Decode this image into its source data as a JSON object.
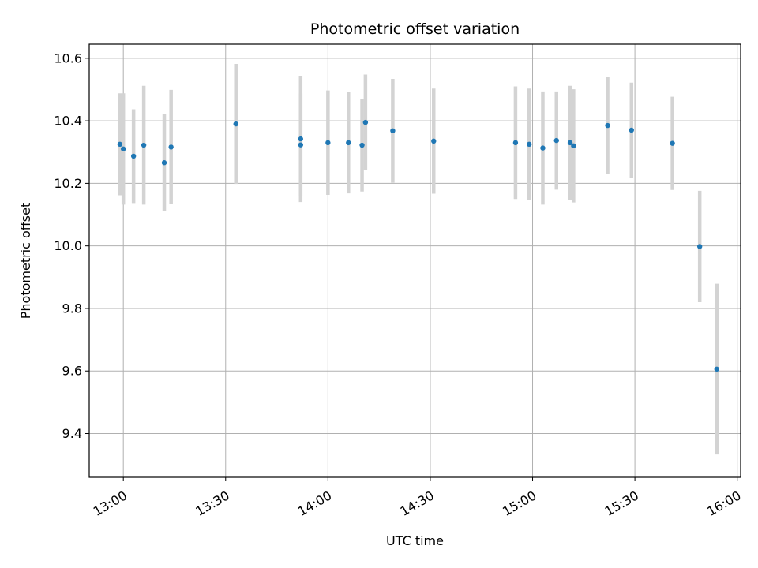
{
  "chart_data": {
    "type": "scatter",
    "title": "Photometric offset variation",
    "xlabel": "UTC time",
    "ylabel": "Photometric offset",
    "x_ticks": [
      "13:00",
      "13:30",
      "14:00",
      "14:30",
      "15:00",
      "15:30",
      "16:00"
    ],
    "y_ticks": [
      "9.4",
      "9.6",
      "9.8",
      "10.0",
      "10.2",
      "10.4",
      "10.6"
    ],
    "xlim": [
      "12:50",
      "15:61"
    ],
    "ylim": [
      9.26,
      10.645
    ],
    "grid": true,
    "series": [
      {
        "points": [
          {
            "t": "12:59",
            "y": 10.325,
            "err": 0.163
          },
          {
            "t": "13:00",
            "y": 10.31,
            "err": 0.178
          },
          {
            "t": "13:03",
            "y": 10.287,
            "err": 0.15
          },
          {
            "t": "13:06",
            "y": 10.322,
            "err": 0.19
          },
          {
            "t": "13:12",
            "y": 10.266,
            "err": 0.155
          },
          {
            "t": "13:14",
            "y": 10.316,
            "err": 0.183
          },
          {
            "t": "13:33",
            "y": 10.39,
            "err": 0.192
          },
          {
            "t": "13:52",
            "y": 10.342,
            "err": 0.202
          },
          {
            "t": "13:52",
            "y": 10.323,
            "err": 0.165
          },
          {
            "t": "14:00",
            "y": 10.33,
            "err": 0.167
          },
          {
            "t": "14:06",
            "y": 10.33,
            "err": 0.162
          },
          {
            "t": "14:10",
            "y": 10.322,
            "err": 0.148
          },
          {
            "t": "14:11",
            "y": 10.395,
            "err": 0.153
          },
          {
            "t": "14:19",
            "y": 10.368,
            "err": 0.166
          },
          {
            "t": "14:31",
            "y": 10.335,
            "err": 0.168
          },
          {
            "t": "14:55",
            "y": 10.33,
            "err": 0.18
          },
          {
            "t": "14:59",
            "y": 10.325,
            "err": 0.178
          },
          {
            "t": "15:03",
            "y": 10.313,
            "err": 0.181
          },
          {
            "t": "15:07",
            "y": 10.337,
            "err": 0.157
          },
          {
            "t": "15:11",
            "y": 10.33,
            "err": 0.182
          },
          {
            "t": "15:12",
            "y": 10.32,
            "err": 0.181
          },
          {
            "t": "15:22",
            "y": 10.385,
            "err": 0.155
          },
          {
            "t": "15:29",
            "y": 10.37,
            "err": 0.152
          },
          {
            "t": "15:41",
            "y": 10.328,
            "err": 0.149
          },
          {
            "t": "15:49",
            "y": 9.998,
            "err": 0.178
          },
          {
            "t": "15:54",
            "y": 9.606,
            "err": 0.273
          }
        ]
      }
    ],
    "colors": {
      "point": "#1f77b4",
      "errorbar": "#d3d3d3",
      "grid": "#b0b0b0"
    }
  }
}
